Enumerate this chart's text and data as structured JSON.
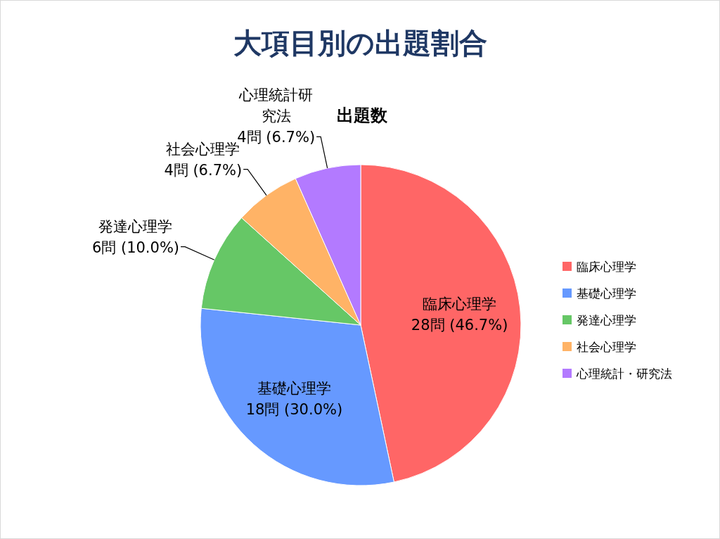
{
  "chart_data": {
    "type": "pie",
    "title": "大項目別の出題割合",
    "subtitle": "出題数",
    "categories": [
      "臨床心理学",
      "基礎心理学",
      "発達心理学",
      "社会心理学",
      "心理統計・研究法"
    ],
    "values": [
      28,
      18,
      6,
      4,
      4
    ],
    "colors": [
      "#ff6666",
      "#6699ff",
      "#66c766",
      "#ffb366",
      "#b37aff"
    ],
    "value_labels": [
      "臨床心理学 28問 (46.7%)",
      "基礎心理学 18問 (30.0%)",
      "発達心理学 6問 (10.0%)",
      "社会心理学 4問 (6.7%)",
      "心理統計研究法 4問 (6.7%)"
    ],
    "legend": "right"
  }
}
